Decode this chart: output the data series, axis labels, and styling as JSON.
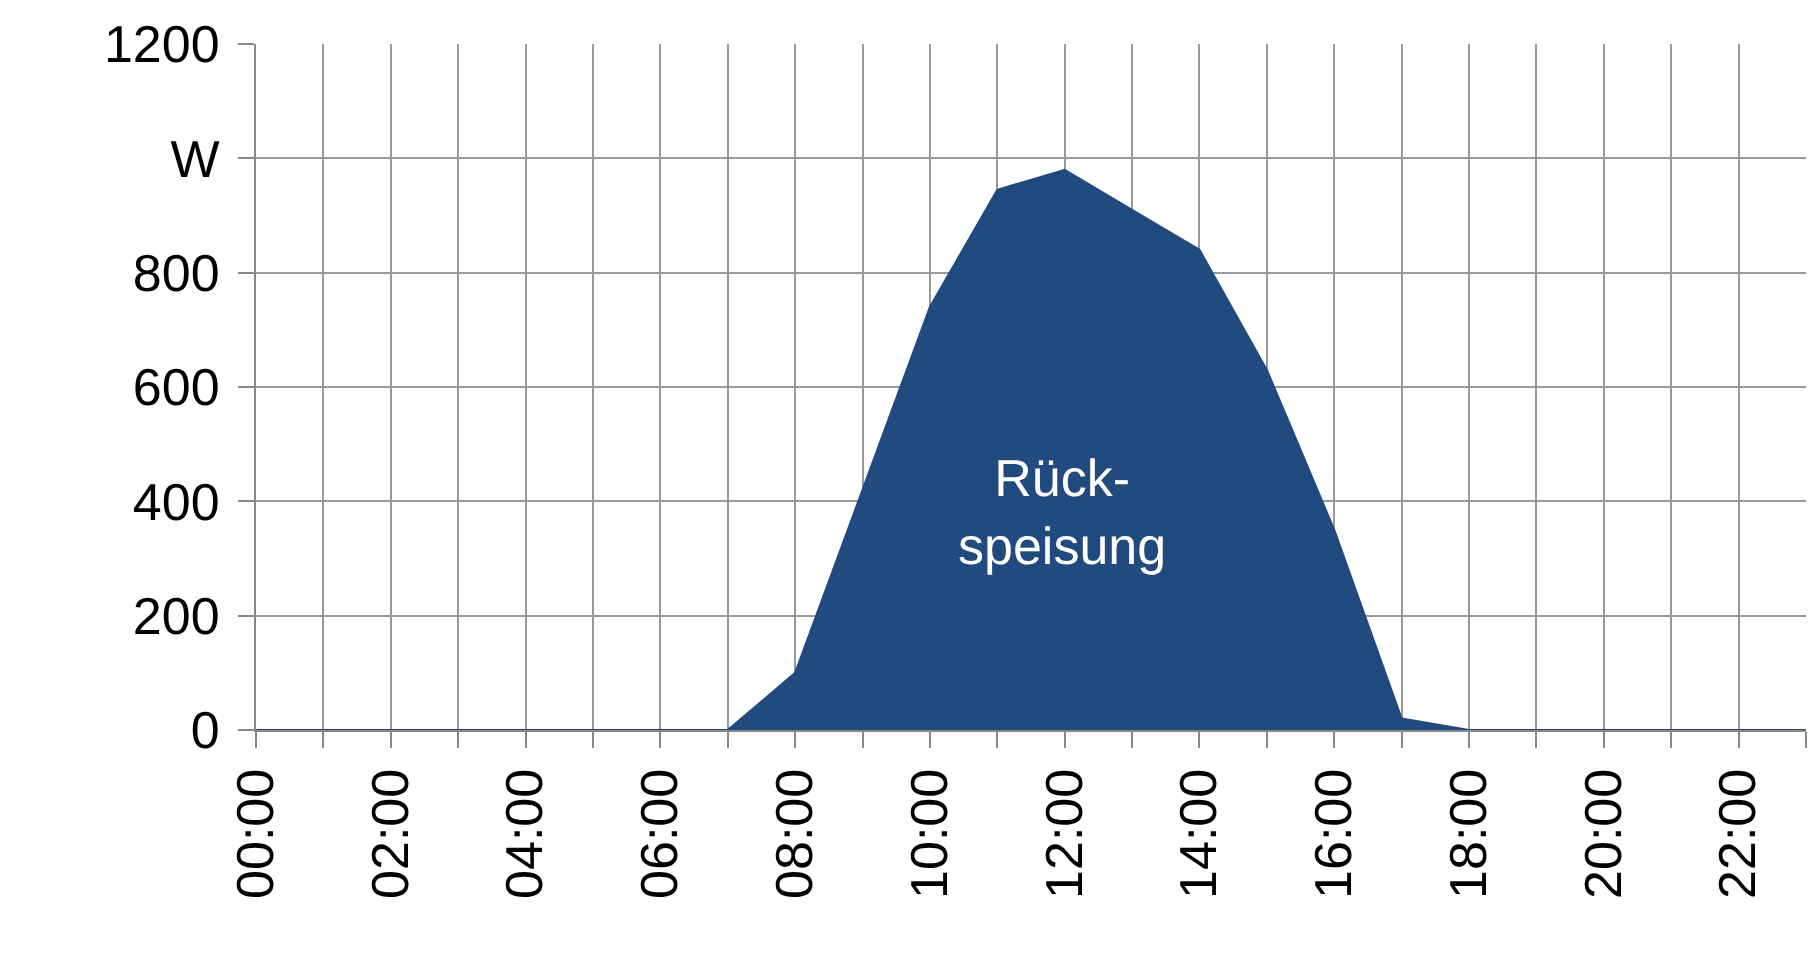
{
  "chart_data": {
    "type": "area",
    "x": [
      0,
      1,
      2,
      3,
      4,
      5,
      6,
      7,
      8,
      9,
      10,
      11,
      12,
      13,
      14,
      15,
      16,
      17,
      18,
      19,
      20,
      21,
      22,
      23
    ],
    "series": [
      {
        "color": "#214a7e",
        "values": [
          0,
          0,
          0,
          0,
          0,
          0,
          0,
          0,
          100,
          420,
          740,
          945,
          980,
          910,
          840,
          630,
          350,
          20,
          0,
          0,
          0,
          0,
          0,
          0
        ]
      }
    ],
    "xlim": [
      0,
      23
    ],
    "xticks": [
      {
        "value": 0,
        "label": "00:00"
      },
      {
        "value": 1,
        "label": null
      },
      {
        "value": 2,
        "label": "02:00"
      },
      {
        "value": 3,
        "label": null
      },
      {
        "value": 4,
        "label": "04:00"
      },
      {
        "value": 5,
        "label": null
      },
      {
        "value": 6,
        "label": "06:00"
      },
      {
        "value": 7,
        "label": null
      },
      {
        "value": 8,
        "label": "08:00"
      },
      {
        "value": 9,
        "label": null
      },
      {
        "value": 10,
        "label": "10:00"
      },
      {
        "value": 11,
        "label": null
      },
      {
        "value": 12,
        "label": "12:00"
      },
      {
        "value": 13,
        "label": null
      },
      {
        "value": 14,
        "label": "14:00"
      },
      {
        "value": 15,
        "label": null
      },
      {
        "value": 16,
        "label": "16:00"
      },
      {
        "value": 17,
        "label": null
      },
      {
        "value": 18,
        "label": "18:00"
      },
      {
        "value": 19,
        "label": null
      },
      {
        "value": 20,
        "label": "20:00"
      },
      {
        "value": 21,
        "label": null
      },
      {
        "value": 22,
        "label": "22:00"
      },
      {
        "value": 23,
        "label": null
      }
    ],
    "ylim": [
      0,
      1200
    ],
    "yticks": [
      0,
      200,
      400,
      600,
      800,
      {
        "value": 1000,
        "label": "W"
      },
      1200
    ],
    "grid": true,
    "annotations": [
      "Rück-\nspeisung"
    ]
  }
}
